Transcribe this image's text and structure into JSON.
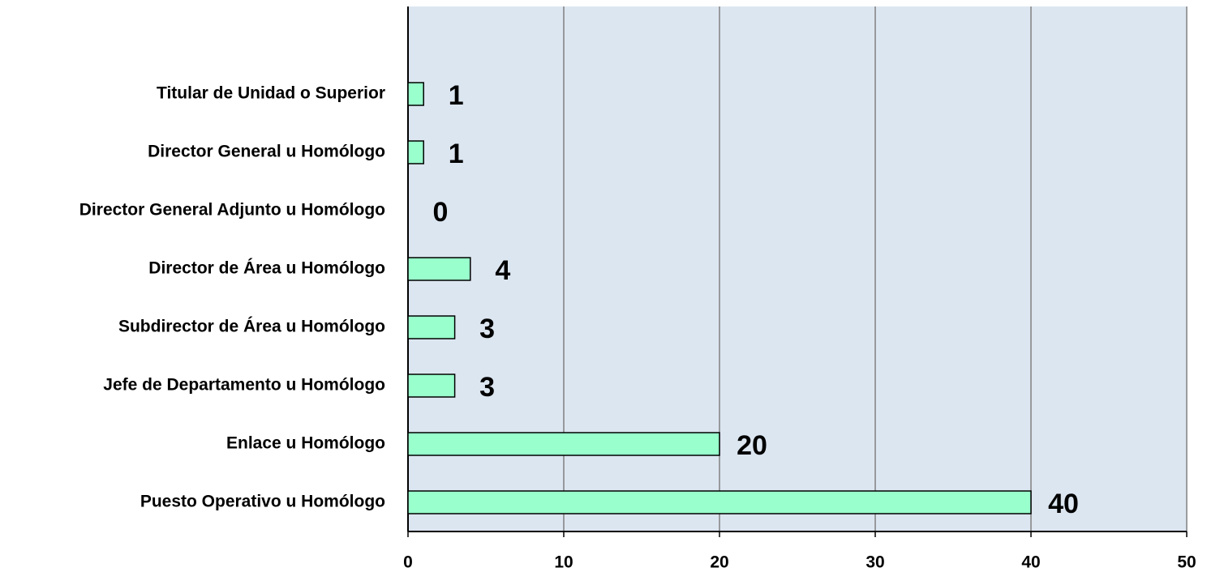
{
  "chart_data": {
    "type": "bar",
    "orientation": "horizontal",
    "categories": [
      "Titular de Unidad o Superior",
      "Director General u Homólogo",
      "Director General Adjunto u Homólogo",
      "Director de Área u Homólogo",
      "Subdirector de Área u Homólogo",
      "Jefe de Departamento u Homólogo",
      "Enlace u Homólogo",
      "Puesto Operativo u Homólogo"
    ],
    "values": [
      1,
      1,
      0,
      4,
      3,
      3,
      20,
      40
    ],
    "color": "#99ffcc",
    "xlim": [
      0,
      50
    ],
    "xticks": [
      0,
      10,
      20,
      30,
      40,
      50
    ],
    "grid": true
  }
}
